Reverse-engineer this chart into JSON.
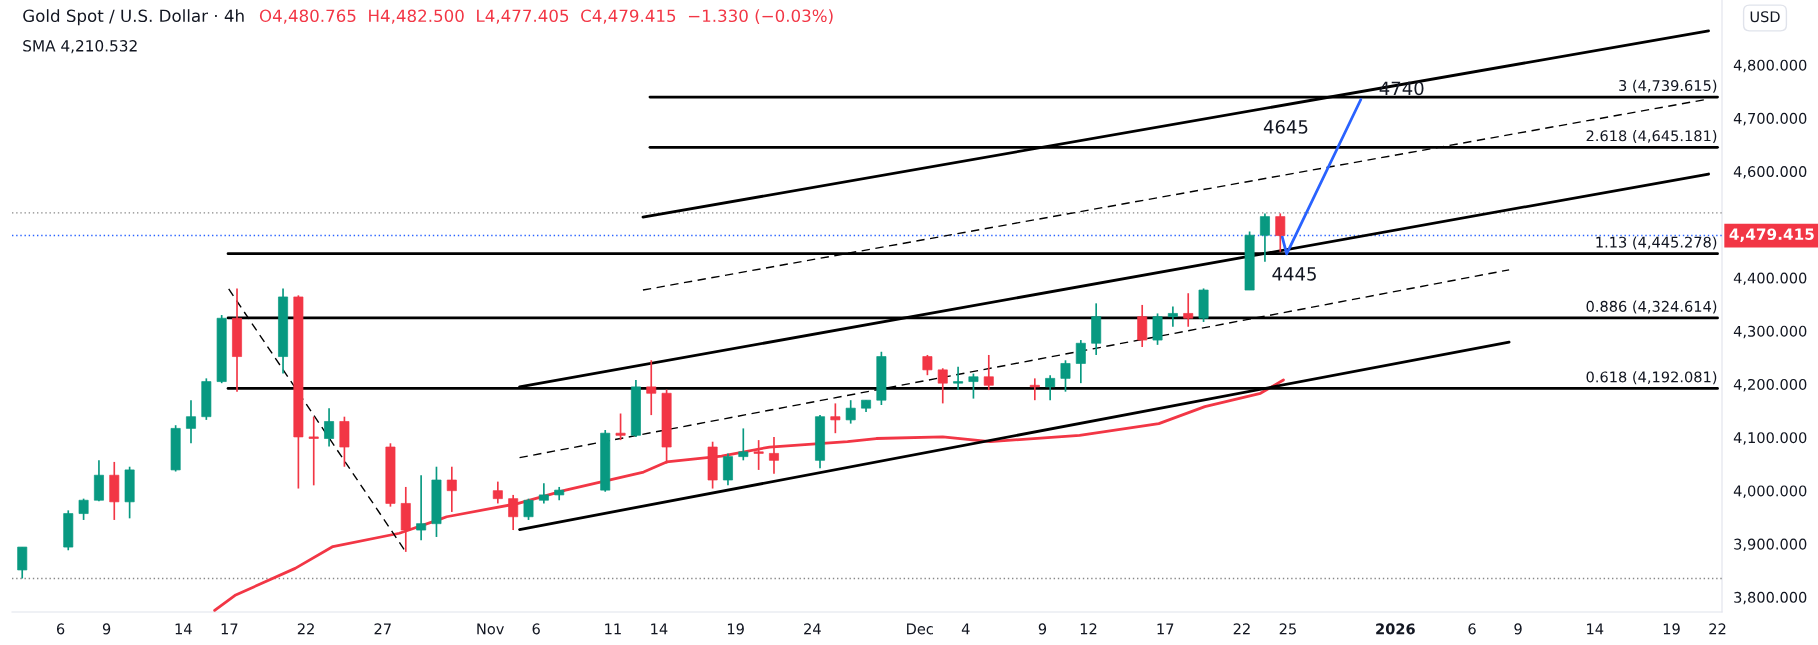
{
  "chart_data": {
    "type": "candlestick",
    "title": "Gold Spot / U.S. Dollar · 4h",
    "annotations": [
      "O4,480.765  H4,482.500  L4,477.405  C4,479.415  −1.330 (−0.03%)",
      "SMA 4,210.532",
      "USD",
      {
        "text": "4740",
        "x": "2026-01-01T10:00",
        "y": 4753
      },
      "4645",
      "4445"
    ],
    "x": [
      "2025-10-03T12:00",
      "2025-10-06T12:00",
      "2025-10-07T12:00",
      "2025-10-08T12:00",
      "2025-10-09T12:00",
      "2025-10-10T12:00",
      "2025-10-13T12:00",
      "2025-10-14T12:00",
      "2025-10-15T12:00",
      "2025-10-16T12:00",
      "2025-10-17T12:00",
      "2025-10-20T12:00",
      "2025-10-21T12:00",
      "2025-10-22T12:00",
      "2025-10-23T12:00",
      "2025-10-24T12:00",
      "2025-10-27T12:00",
      "2025-10-28T12:00",
      "2025-10-29T12:00",
      "2025-10-30T12:00",
      "2025-10-31T12:00",
      "2025-11-03T12:00",
      "2025-11-04T12:00",
      "2025-11-05T12:00",
      "2025-11-06T12:00",
      "2025-11-07T12:00",
      "2025-11-10T12:00",
      "2025-11-11T12:00",
      "2025-11-12T12:00",
      "2025-11-13T12:00",
      "2025-11-14T12:00",
      "2025-11-17T12:00",
      "2025-11-18T12:00",
      "2025-11-19T12:00",
      "2025-11-20T12:00",
      "2025-11-21T12:00",
      "2025-11-24T12:00",
      "2025-11-25T12:00",
      "2025-11-26T12:00",
      "2025-11-27T12:00",
      "2025-11-28T12:00",
      "2025-12-01T12:00",
      "2025-12-02T12:00",
      "2025-12-03T12:00",
      "2025-12-04T12:00",
      "2025-12-05T12:00",
      "2025-12-08T12:00",
      "2025-12-09T12:00",
      "2025-12-10T12:00",
      "2025-12-11T12:00",
      "2025-12-12T12:00",
      "2025-12-15T12:00",
      "2025-12-16T12:00",
      "2025-12-17T12:00",
      "2025-12-18T12:00",
      "2025-12-19T12:00",
      "2025-12-22T12:00",
      "2025-12-23T12:00",
      "2025-12-24T12:00"
    ],
    "ohlc": [
      [
        3851,
        3894,
        3835,
        3894
      ],
      [
        3894,
        3963,
        3888,
        3957
      ],
      [
        3957,
        3985,
        3945,
        3982
      ],
      [
        3982,
        4057,
        3980,
        4029
      ],
      [
        4029,
        4054,
        3945,
        3979
      ],
      [
        3979,
        4045,
        3948,
        4039
      ],
      [
        4039,
        4123,
        4036,
        4117
      ],
      [
        4117,
        4170,
        4089,
        4139
      ],
      [
        4139,
        4211,
        4133,
        4205
      ],
      [
        4205,
        4330,
        4202,
        4324
      ],
      [
        4324,
        4380,
        4186,
        4252
      ],
      [
        4252,
        4380,
        4220,
        4364
      ],
      [
        4364,
        4367,
        4004,
        4101
      ],
      [
        4101,
        4139,
        4010,
        4098
      ],
      [
        4098,
        4155,
        4083,
        4130
      ],
      [
        4130,
        4139,
        4045,
        4082
      ],
      [
        4082,
        4089,
        3970,
        3976
      ],
      [
        3976,
        4007,
        3885,
        3926
      ],
      [
        3926,
        4029,
        3907,
        3938
      ],
      [
        3938,
        4045,
        3913,
        4020
      ],
      [
        4020,
        4045,
        3960,
        4000
      ],
      [
        4000,
        4017,
        3976,
        3985
      ],
      [
        3985,
        3992,
        3926,
        3951
      ],
      [
        3951,
        3985,
        3945,
        3982
      ],
      [
        3982,
        4014,
        3976,
        3992
      ],
      [
        3992,
        4007,
        3982,
        4001
      ],
      [
        4001,
        4114,
        3998,
        4108
      ],
      [
        4108,
        4145,
        4095,
        4104
      ],
      [
        4104,
        4208,
        4101,
        4195
      ],
      [
        4195,
        4245,
        4142,
        4183
      ],
      [
        4183,
        4190,
        4051,
        4082
      ],
      [
        4082,
        4092,
        4004,
        4020
      ],
      [
        4020,
        4070,
        4010,
        4064
      ],
      [
        4064,
        4117,
        4057,
        4073
      ],
      [
        4073,
        4095,
        4039,
        4070
      ],
      [
        4070,
        4101,
        4032,
        4057
      ],
      [
        4057,
        4142,
        4042,
        4139
      ],
      [
        4139,
        4164,
        4108,
        4133
      ],
      [
        4133,
        4170,
        4126,
        4155
      ],
      [
        4155,
        4170,
        4148,
        4170
      ],
      [
        4170,
        4261,
        4161,
        4252
      ],
      [
        4252,
        4255,
        4217,
        4227
      ],
      [
        4227,
        4230,
        4164,
        4202
      ],
      [
        4202,
        4233,
        4189,
        4205
      ],
      [
        4205,
        4220,
        4173,
        4214
      ],
      [
        4214,
        4255,
        4189,
        4198
      ],
      [
        4198,
        4211,
        4170,
        4195
      ],
      [
        4195,
        4217,
        4170,
        4211
      ],
      [
        4211,
        4245,
        4186,
        4239
      ],
      [
        4239,
        4283,
        4202,
        4277
      ],
      [
        4277,
        4352,
        4255,
        4327
      ],
      [
        4327,
        4349,
        4270,
        4283
      ],
      [
        4283,
        4333,
        4274,
        4327
      ],
      [
        4327,
        4346,
        4308,
        4333
      ],
      [
        4333,
        4371,
        4308,
        4324
      ],
      [
        4324,
        4380,
        4317,
        4377
      ],
      [
        4377,
        4487,
        4377,
        4480
      ],
      [
        4480,
        4521,
        4430,
        4515
      ],
      [
        4515,
        4521,
        4449,
        4479.415
      ]
    ],
    "colors": [
      "#089981",
      "#089981",
      "#089981",
      "#089981",
      "#f23645",
      "#089981",
      "#089981",
      "#089981",
      "#089981",
      "#089981",
      "#f23645",
      "#089981",
      "#f23645",
      "#f23645",
      "#089981",
      "#f23645",
      "#f23645",
      "#f23645",
      "#089981",
      "#089981",
      "#f23645",
      "#f23645",
      "#f23645",
      "#089981",
      "#089981",
      "#089981",
      "#089981",
      "#f23645",
      "#089981",
      "#f23645",
      "#f23645",
      "#f23645",
      "#089981",
      "#089981",
      "#f23645",
      "#f23645",
      "#089981",
      "#f23645",
      "#089981",
      "#089981",
      "#089981",
      "#f23645",
      "#f23645",
      "#089981",
      "#089981",
      "#f23645",
      "#f23645",
      "#089981",
      "#089981",
      "#089981",
      "#089981",
      "#f23645",
      "#089981",
      "#089981",
      "#f23645",
      "#089981",
      "#089981",
      "#089981",
      "#f23645"
    ],
    "series": [
      {
        "type": "line",
        "color": "#f23645",
        "line_style": "solid",
        "x": [
          "2025-10-16T01:00",
          "2025-10-17T10:00",
          "2025-10-21T07:00",
          "2025-10-23T18:00",
          "2025-10-28T02:00",
          "2025-10-30T17:00",
          "2025-10-31T04:00",
          "2025-11-04T20:00",
          "2025-11-07T22:00",
          "2025-11-13T00:00",
          "2025-11-14T12:00",
          "2025-11-18T02:00",
          "2025-11-21T05:00",
          "2025-11-26T07:00",
          "2025-11-28T04:00",
          "2025-12-02T12:00",
          "2025-12-05T14:00",
          "2025-12-11T10:00",
          "2025-12-16T14:00",
          "2025-12-19T14:00",
          "2025-12-23T05:00",
          "2025-12-24T17:00"
        ],
        "values": [
          3775,
          3804,
          3854,
          3895,
          3920,
          3946,
          3951,
          3976,
          4001,
          4035,
          4054,
          4065,
          4082,
          4092,
          4098,
          4101,
          4092,
          4104,
          4126,
          4158,
          4183,
          4208
        ]
      },
      {
        "type": "line",
        "name": "3 (4,739.615)",
        "color": "#000000",
        "line_style": "solid",
        "x": [
          "2025-11-13T10:00",
          "2026-01-22T00:00"
        ],
        "values": [
          4739.615,
          4739.615
        ]
      },
      {
        "type": "line",
        "name": "2.618 (4,645.181)",
        "color": "#000000",
        "line_style": "solid",
        "x": [
          "2025-11-13T10:00",
          "2026-01-22T00:00"
        ],
        "values": [
          4645.181,
          4645.181
        ]
      },
      {
        "type": "line",
        "name": "1.13 (4,445.278)",
        "color": "#000000",
        "line_style": "solid",
        "x": [
          "2025-10-16T22:00",
          "2026-01-22T00:00"
        ],
        "values": [
          4445.278,
          4445.278
        ]
      },
      {
        "type": "line",
        "name": "0.886 (4,324.614)",
        "color": "#000000",
        "line_style": "solid",
        "x": [
          "2025-10-16T22:00",
          "2026-01-22T00:00"
        ],
        "values": [
          4324.614,
          4324.614
        ]
      },
      {
        "type": "line",
        "name": "0.618 (4,192.081)",
        "color": "#000000",
        "line_style": "solid",
        "x": [
          "2025-10-16T22:00",
          "2026-01-22T00:00"
        ],
        "values": [
          4192.081,
          4192.081
        ]
      },
      {
        "type": "line",
        "color": "#000000",
        "line_style": "solid",
        "x": [
          "2025-11-12T23:00",
          "2026-01-21T10:00"
        ],
        "values": [
          4514,
          4864
        ]
      },
      {
        "type": "line",
        "color": "#000000",
        "line_style": "solid",
        "x": [
          "2025-11-04T22:00",
          "2026-01-21T10:00"
        ],
        "values": [
          4195,
          4595
        ]
      },
      {
        "type": "line",
        "color": "#000000",
        "line_style": "solid",
        "x": [
          "2025-11-04T22:00",
          "2026-01-08T10:00"
        ],
        "values": [
          3927,
          4279
        ]
      },
      {
        "type": "line",
        "color": "#000000",
        "line_style": "dashed",
        "x": [
          "2025-11-12T23:00",
          "2026-01-21T10:00"
        ],
        "values": [
          4377,
          4736
        ]
      },
      {
        "type": "line",
        "color": "#000000",
        "line_style": "dashed",
        "x": [
          "2025-11-04T22:00",
          "2026-01-08T10:00"
        ],
        "values": [
          4062,
          4415
        ]
      },
      {
        "type": "line",
        "color": "#000000",
        "line_style": "dashed",
        "x": [
          "2025-10-16T23:00",
          "2025-10-28T12:00"
        ],
        "values": [
          4379,
          3885
        ]
      },
      {
        "type": "line",
        "color": "#2962ff",
        "line_style": "solid",
        "x": [
          "2025-12-24T15:00",
          "2025-12-24T22:00",
          "2025-12-29T18:00"
        ],
        "values": [
          4477,
          4445,
          4735
        ]
      }
    ],
    "ref_lines": [
      {
        "axis": "y",
        "value": 4479.415,
        "label": "4,479.415",
        "color": "#2962ff",
        "line_style": "dotted"
      },
      {
        "axis": "y",
        "value": 4522,
        "color": "#888888",
        "line_style": "dotted"
      },
      {
        "axis": "y",
        "value": 3835,
        "color": "#888888",
        "line_style": "dotted"
      }
    ],
    "xlim": [
      "2025-10-02T20:00",
      "2026-01-22T07:00"
    ],
    "xticks": [
      {
        "value": "2025-10-06",
        "label": "6"
      },
      {
        "value": "2025-10-09",
        "label": "9"
      },
      {
        "value": "2025-10-14",
        "label": "14"
      },
      {
        "value": "2025-10-17",
        "label": "17"
      },
      {
        "value": "2025-10-22",
        "label": "22"
      },
      {
        "value": "2025-10-27",
        "label": "27"
      },
      {
        "value": "2025-11-03",
        "label": "Nov"
      },
      {
        "value": "2025-11-06",
        "label": "6"
      },
      {
        "value": "2025-11-11",
        "label": "11"
      },
      {
        "value": "2025-11-14",
        "label": "14"
      },
      {
        "value": "2025-11-19",
        "label": "19"
      },
      {
        "value": "2025-11-24",
        "label": "24"
      },
      {
        "value": "2025-12-01",
        "label": "Dec"
      },
      {
        "value": "2025-12-04",
        "label": "4"
      },
      {
        "value": "2025-12-09",
        "label": "9"
      },
      {
        "value": "2025-12-12",
        "label": "12"
      },
      {
        "value": "2025-12-17",
        "label": "17"
      },
      {
        "value": "2025-12-22",
        "label": "22"
      },
      {
        "value": "2025-12-25",
        "label": "25"
      },
      {
        "value": "2026-01-01",
        "label": "2026"
      },
      {
        "value": "2026-01-06",
        "label": "6"
      },
      {
        "value": "2026-01-09",
        "label": "9"
      },
      {
        "value": "2026-01-14",
        "label": "14"
      },
      {
        "value": "2026-01-19",
        "label": "19"
      },
      {
        "value": "2026-01-22",
        "label": "22"
      }
    ],
    "ylim": [
      3772,
      4922
    ],
    "yticks": [
      {
        "value": 3800,
        "label": "3,800.000"
      },
      {
        "value": 3900,
        "label": "3,900.000"
      },
      {
        "value": 4000,
        "label": "4,000.000"
      },
      {
        "value": 4100,
        "label": "4,100.000"
      },
      {
        "value": 4200,
        "label": "4,200.000"
      },
      {
        "value": 4300,
        "label": "4,300.000"
      },
      {
        "value": 4400,
        "label": "4,400.000"
      },
      {
        "value": 4600,
        "label": "4,600.000"
      },
      {
        "value": 4700,
        "label": "4,700.000"
      },
      {
        "value": 4800,
        "label": "4,800.000"
      }
    ]
  }
}
